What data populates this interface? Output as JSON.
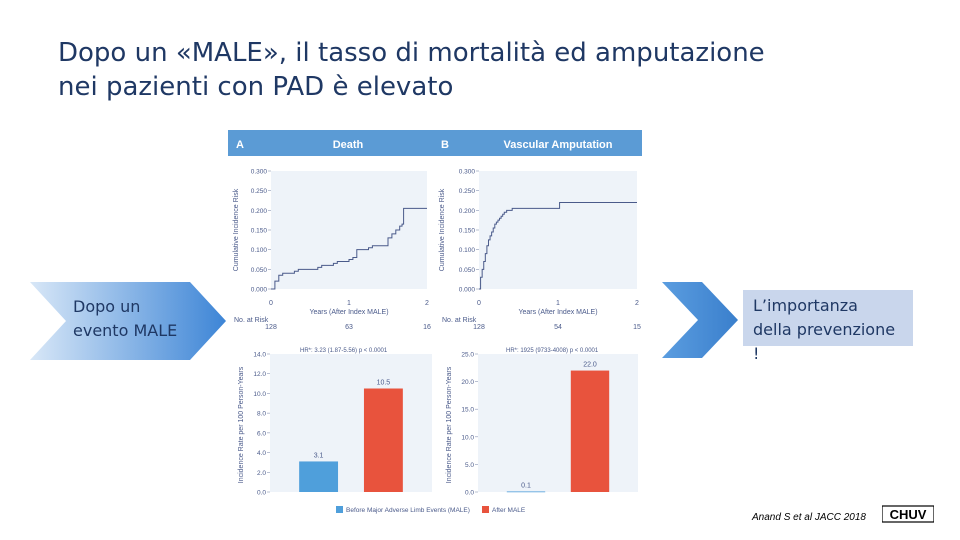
{
  "slide": {
    "title_line1": "Dopo un «MALE», il tasso di mortalità ed amputazione",
    "title_line2": "nei pazienti con PAD è elevato",
    "left_label_line1": "Dopo un",
    "left_label_line2": "evento MALE",
    "right_label_line1": "L’importanza",
    "right_label_line2": "della prevenzione",
    "right_label_line3": "!",
    "citation": "Anand S et al JACC 2018",
    "logo_text": "CHUV"
  },
  "colors": {
    "title": "#1f3864",
    "chevron": "#4a90d9",
    "header": "#5b9bd5",
    "km_line": "#4a5a8a",
    "bar_before": "#4f9fdb",
    "bar_after": "#e8533d",
    "right_box": "#c9d6ec"
  },
  "chart_data": [
    {
      "type": "line",
      "panel": "A",
      "title": "Death",
      "xlabel": "Years (After Index MALE)",
      "ylabel": "Cumulative Incidence Risk",
      "xlim": [
        0,
        2
      ],
      "ylim": [
        0,
        0.3
      ],
      "xticks": [
        "0",
        "1",
        "2"
      ],
      "yticks": [
        "0.000",
        "0.050",
        "0.100",
        "0.150",
        "0.200",
        "0.250",
        "0.300"
      ],
      "series": [
        {
          "x": [
            0,
            0.05,
            0.1,
            0.15,
            0.3,
            0.35,
            0.6,
            0.65,
            0.8,
            0.85,
            1.0,
            1.05,
            1.1,
            1.25,
            1.3,
            1.5,
            1.55,
            1.6,
            1.65,
            1.68,
            1.7,
            2.0
          ],
          "y": [
            0.0,
            0.02,
            0.035,
            0.04,
            0.045,
            0.05,
            0.055,
            0.06,
            0.065,
            0.07,
            0.075,
            0.08,
            0.1,
            0.105,
            0.11,
            0.13,
            0.14,
            0.15,
            0.16,
            0.165,
            0.205,
            0.205
          ]
        }
      ],
      "at_risk_label": "No. at Risk",
      "at_risk": [
        "128",
        "63",
        "16"
      ],
      "hr_text": "HR*: 3.23 (1.87-5.56) p < 0.0001"
    },
    {
      "type": "line",
      "panel": "B",
      "title": "Vascular Amputation",
      "xlabel": "Years (After Index MALE)",
      "ylabel": "Cumulative Incidence Risk",
      "xlim": [
        0,
        2
      ],
      "ylim": [
        0,
        0.3
      ],
      "xticks": [
        "0",
        "1",
        "2"
      ],
      "yticks": [
        "0.000",
        "0.050",
        "0.100",
        "0.150",
        "0.200",
        "0.250",
        "0.300"
      ],
      "series": [
        {
          "x": [
            0,
            0.02,
            0.04,
            0.06,
            0.08,
            0.1,
            0.12,
            0.14,
            0.16,
            0.18,
            0.2,
            0.22,
            0.24,
            0.26,
            0.28,
            0.3,
            0.32,
            0.35,
            0.38,
            0.42,
            0.5,
            0.8,
            1.0,
            1.02,
            2.0
          ],
          "y": [
            0.0,
            0.03,
            0.05,
            0.07,
            0.09,
            0.11,
            0.125,
            0.135,
            0.145,
            0.155,
            0.165,
            0.17,
            0.175,
            0.18,
            0.185,
            0.19,
            0.195,
            0.2,
            0.2,
            0.205,
            0.205,
            0.205,
            0.205,
            0.22,
            0.22
          ]
        }
      ],
      "at_risk_label": "No. at Risk",
      "at_risk": [
        "128",
        "54",
        "15"
      ],
      "hr_text": "HR*: 1925 (9733-4008) p < 0.0001"
    },
    {
      "type": "bar",
      "ylabel": "Incidence Rate per 100 Person-Years",
      "ylim": [
        0,
        14
      ],
      "yticks": [
        "0.0",
        "2.0",
        "4.0",
        "6.0",
        "8.0",
        "10.0",
        "12.0",
        "14.0"
      ],
      "categories": [
        "Before Major Adverse Limb Events (MALE)",
        "After MALE"
      ],
      "values": [
        3.1,
        10.5
      ],
      "value_labels": [
        "3.1",
        "10.5"
      ]
    },
    {
      "type": "bar",
      "ylabel": "Incidence Rate per 100 Person-Years",
      "ylim": [
        0,
        25
      ],
      "yticks": [
        "0.0",
        "5.0",
        "10.0",
        "15.0",
        "20.0",
        "25.0"
      ],
      "categories": [
        "Before Major Adverse Limb Events (MALE)",
        "After MALE"
      ],
      "values": [
        0.1,
        22.0
      ],
      "value_labels": [
        "0.1",
        "22.0"
      ]
    }
  ],
  "legend": {
    "before": "Before Major Adverse Limb Events (MALE)",
    "after": "After MALE"
  }
}
